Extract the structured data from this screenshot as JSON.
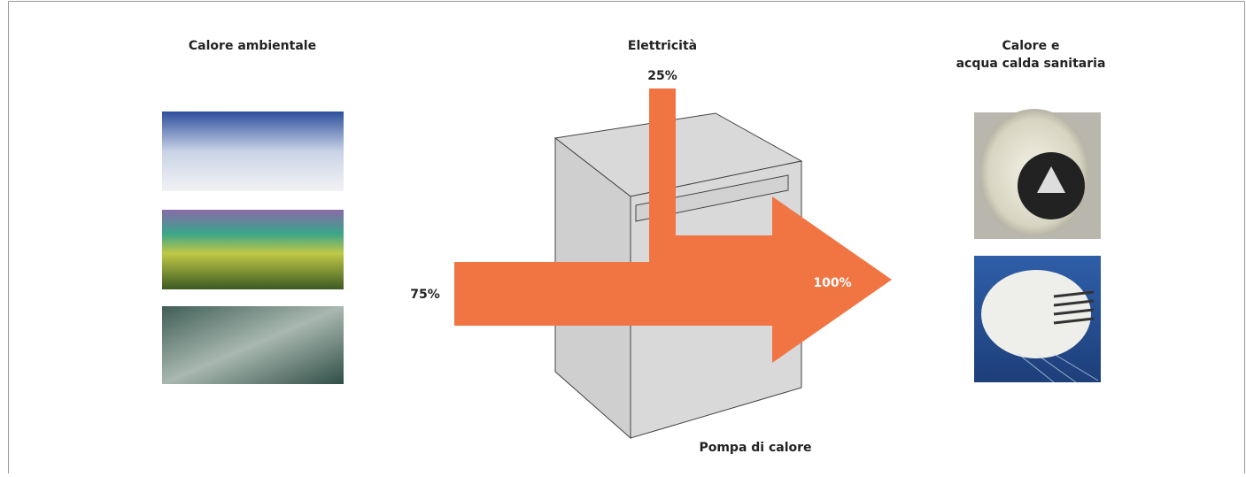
{
  "sources": {
    "title": "Calore ambientale"
  },
  "electricity": {
    "title": "Elettricità",
    "share": "25%"
  },
  "ambient": {
    "share": "75%"
  },
  "output": {
    "title_line1": "Calore e",
    "title_line2": "acqua calda sanitaria",
    "share": "100%"
  },
  "device": {
    "label": "Pompa di calore"
  }
}
